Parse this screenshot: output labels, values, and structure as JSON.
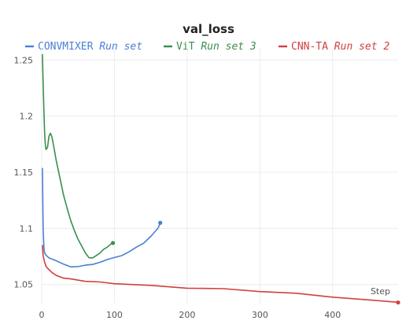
{
  "chart_data": {
    "type": "line",
    "title": "val_loss",
    "xlabel": "Step",
    "ylabel": "",
    "xlim": [
      0,
      490
    ],
    "ylim": [
      1.033,
      1.26
    ],
    "x_ticks": [
      0,
      100,
      200,
      300,
      400
    ],
    "y_ticks": [
      1.05,
      1.1,
      1.15,
      1.2,
      1.25
    ],
    "x_tick_labels": [
      "0",
      "100",
      "200",
      "300",
      "400"
    ],
    "y_tick_labels": [
      "1.05",
      "1.1",
      "1.15",
      "1.2",
      "1.25"
    ],
    "grid": true,
    "legend_position": "top",
    "series": [
      {
        "name": "CONVMIXER",
        "run": "Run set",
        "color": "#4a7fd4",
        "points": [
          [
            1,
            1.154
          ],
          [
            2,
            1.1
          ],
          [
            3,
            1.083
          ],
          [
            4,
            1.078
          ],
          [
            6,
            1.076
          ],
          [
            10,
            1.074
          ],
          [
            20,
            1.071
          ],
          [
            30,
            1.068
          ],
          [
            40,
            1.066
          ],
          [
            50,
            1.066
          ],
          [
            60,
            1.067
          ],
          [
            70,
            1.068
          ],
          [
            80,
            1.07
          ],
          [
            90,
            1.072
          ],
          [
            100,
            1.074
          ],
          [
            110,
            1.076
          ],
          [
            120,
            1.079
          ],
          [
            130,
            1.083
          ],
          [
            140,
            1.087
          ],
          [
            150,
            1.093
          ],
          [
            160,
            1.1
          ],
          [
            163,
            1.105
          ]
        ]
      },
      {
        "name": "ViT",
        "run": "Run set 3",
        "color": "#3a8e4c",
        "points": [
          [
            1,
            1.255
          ],
          [
            2,
            1.23
          ],
          [
            3,
            1.205
          ],
          [
            4,
            1.185
          ],
          [
            5,
            1.175
          ],
          [
            6,
            1.17
          ],
          [
            8,
            1.172
          ],
          [
            10,
            1.182
          ],
          [
            12,
            1.185
          ],
          [
            14,
            1.182
          ],
          [
            16,
            1.175
          ],
          [
            20,
            1.16
          ],
          [
            25,
            1.145
          ],
          [
            30,
            1.13
          ],
          [
            35,
            1.118
          ],
          [
            40,
            1.107
          ],
          [
            45,
            1.098
          ],
          [
            50,
            1.09
          ],
          [
            55,
            1.084
          ],
          [
            60,
            1.078
          ],
          [
            65,
            1.074
          ],
          [
            70,
            1.074
          ],
          [
            75,
            1.076
          ],
          [
            80,
            1.078
          ],
          [
            85,
            1.081
          ],
          [
            90,
            1.083
          ],
          [
            95,
            1.086
          ],
          [
            98,
            1.087
          ]
        ]
      },
      {
        "name": "CNN-TA",
        "run": "Run set 2",
        "color": "#d23f3f",
        "points": [
          [
            1,
            1.085
          ],
          [
            2,
            1.076
          ],
          [
            4,
            1.07
          ],
          [
            6,
            1.066
          ],
          [
            10,
            1.063
          ],
          [
            15,
            1.06
          ],
          [
            20,
            1.058
          ],
          [
            30,
            1.056
          ],
          [
            40,
            1.055
          ],
          [
            60,
            1.053
          ],
          [
            80,
            1.052
          ],
          [
            100,
            1.051
          ],
          [
            150,
            1.049
          ],
          [
            200,
            1.047
          ],
          [
            250,
            1.046
          ],
          [
            300,
            1.044
          ],
          [
            350,
            1.042
          ],
          [
            400,
            1.039
          ],
          [
            450,
            1.036
          ],
          [
            490,
            1.034
          ]
        ]
      }
    ]
  }
}
